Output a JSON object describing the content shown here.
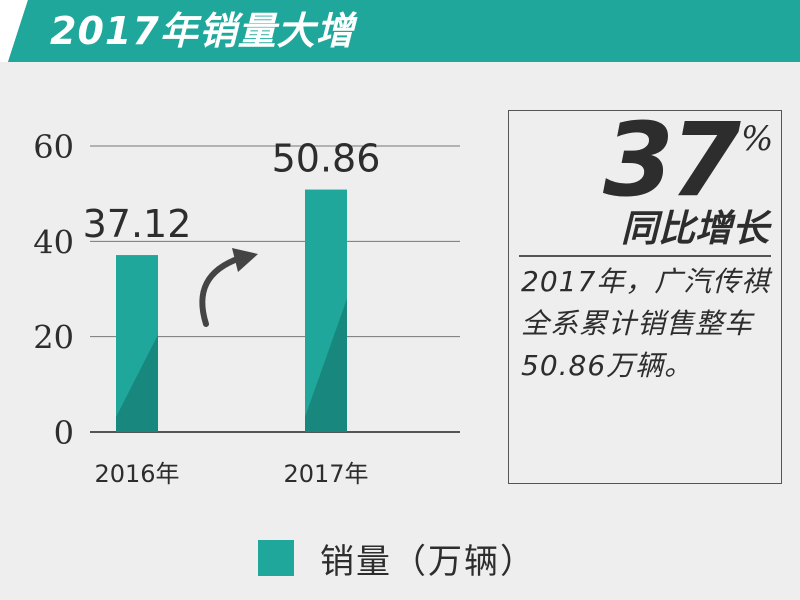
{
  "header": {
    "title": "2017年销量大增"
  },
  "colors": {
    "accent": "#1ea79a",
    "bar_dark": "#18887e",
    "text": "#2d2d2d"
  },
  "chart_data": {
    "type": "bar",
    "title": "",
    "categories": [
      "2016年",
      "2017年"
    ],
    "series": [
      {
        "name": "销量（万辆）",
        "values": [
          37.12,
          50.86
        ]
      }
    ],
    "data_labels": [
      "37.12",
      "50.86"
    ],
    "ylim": [
      0,
      60
    ],
    "yticks": [
      "0",
      "20",
      "40",
      "60"
    ],
    "grid": true,
    "legend": "bottom",
    "annotation_icon": "curved-up-arrow-icon"
  },
  "callout": {
    "big_number": "37",
    "percent_sign": "%",
    "growth_label": "同比增长",
    "description": "2017年，广汽传祺全系累计销售整车50.86万辆。"
  },
  "legend": {
    "label": "销量（万辆）"
  }
}
